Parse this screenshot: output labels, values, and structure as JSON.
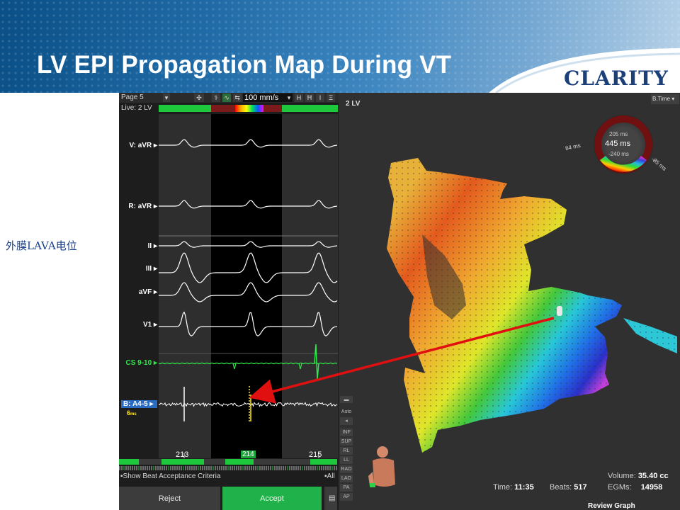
{
  "slide": {
    "title": "LV EPI Propagation Map During VT",
    "logo": "CLARITY",
    "side_note": "外膜LAVA电位"
  },
  "left_panel": {
    "page_label": "Page 5",
    "live_label": "Live: 2 LV",
    "speed": "100 mm/s",
    "leads": [
      "V: aVR",
      "R: aVR",
      "II",
      "III",
      "aVF",
      "V1",
      "CS 9-10",
      "B: A4-5"
    ],
    "selected_lead_value": "6",
    "selected_lead_unit": "ms",
    "beats": [
      "213",
      "214",
      "215"
    ],
    "show_criteria": "Show Beat Acceptance Criteria",
    "all_label": "All",
    "reject": "Reject",
    "accept": "Accept"
  },
  "map_panel": {
    "map_name": "2 LV",
    "mode_select": "B.Time",
    "ring": {
      "top": "205 ms",
      "center": "445 ms",
      "bottom": "-240 ms",
      "left": "84 ms",
      "right": "-85 ms"
    },
    "view_buttons": [
      "Auto",
      "INF",
      "SUP",
      "RL",
      "LL",
      "RAO",
      "LAO",
      "PA",
      "AP"
    ],
    "stats": {
      "time_label": "Time:",
      "time_value": "11:35",
      "beats_label": "Beats:",
      "beats_value": "517",
      "volume_label": "Volume:",
      "volume_value": "35.40 cc",
      "egms_label": "EGMs:",
      "egms_value": "14958"
    },
    "review_graph": "Review Graph"
  },
  "colors": {
    "accept": "#20b14a",
    "arrow": "#e01010",
    "header_dark": "#0a4f86",
    "logo": "#1b3f78"
  }
}
